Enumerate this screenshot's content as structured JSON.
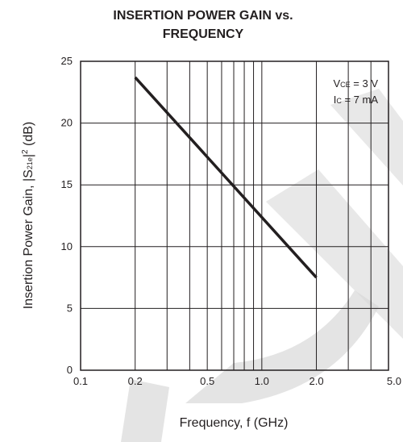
{
  "chart_data": {
    "type": "line",
    "title_line1": "INSERTION POWER GAIN vs.",
    "title_line2": "FREQUENCY",
    "xlabel": "Frequency, f (GHz)",
    "ylabel_main": "Insertion Power Gain, |S",
    "ylabel_sub": "21e",
    "ylabel_tail": "|",
    "ylabel_sup": "2",
    "ylabel_unit": " (dB)",
    "x_scale": "log",
    "xlim": [
      0.1,
      5.0
    ],
    "ylim": [
      0,
      25
    ],
    "x_ticks": [
      0.1,
      0.2,
      0.5,
      1.0,
      2.0,
      5.0
    ],
    "x_tick_labels": [
      "0.1",
      "0.2",
      "0.5",
      "1.0",
      "2.0",
      "5.0"
    ],
    "x_minor_grid": [
      0.3,
      0.4,
      0.6,
      0.7,
      0.8,
      0.9,
      3.0,
      4.0
    ],
    "y_ticks": [
      0,
      5,
      10,
      15,
      20,
      25
    ],
    "y_tick_labels": [
      "0",
      "5",
      "10",
      "15",
      "20",
      "25"
    ],
    "grid": true,
    "annotation": {
      "vce_main": "V",
      "vce_sub": "CE",
      "vce_value": " = 3 V",
      "ic_main": "I",
      "ic_sub": "C",
      "ic_value": " = 7 mA"
    },
    "series": [
      {
        "x": [
          0.2,
          2.0
        ],
        "y": [
          23.7,
          7.5
        ]
      }
    ],
    "line_color": "#231f20",
    "watermark_color": "#d9d9d9"
  }
}
